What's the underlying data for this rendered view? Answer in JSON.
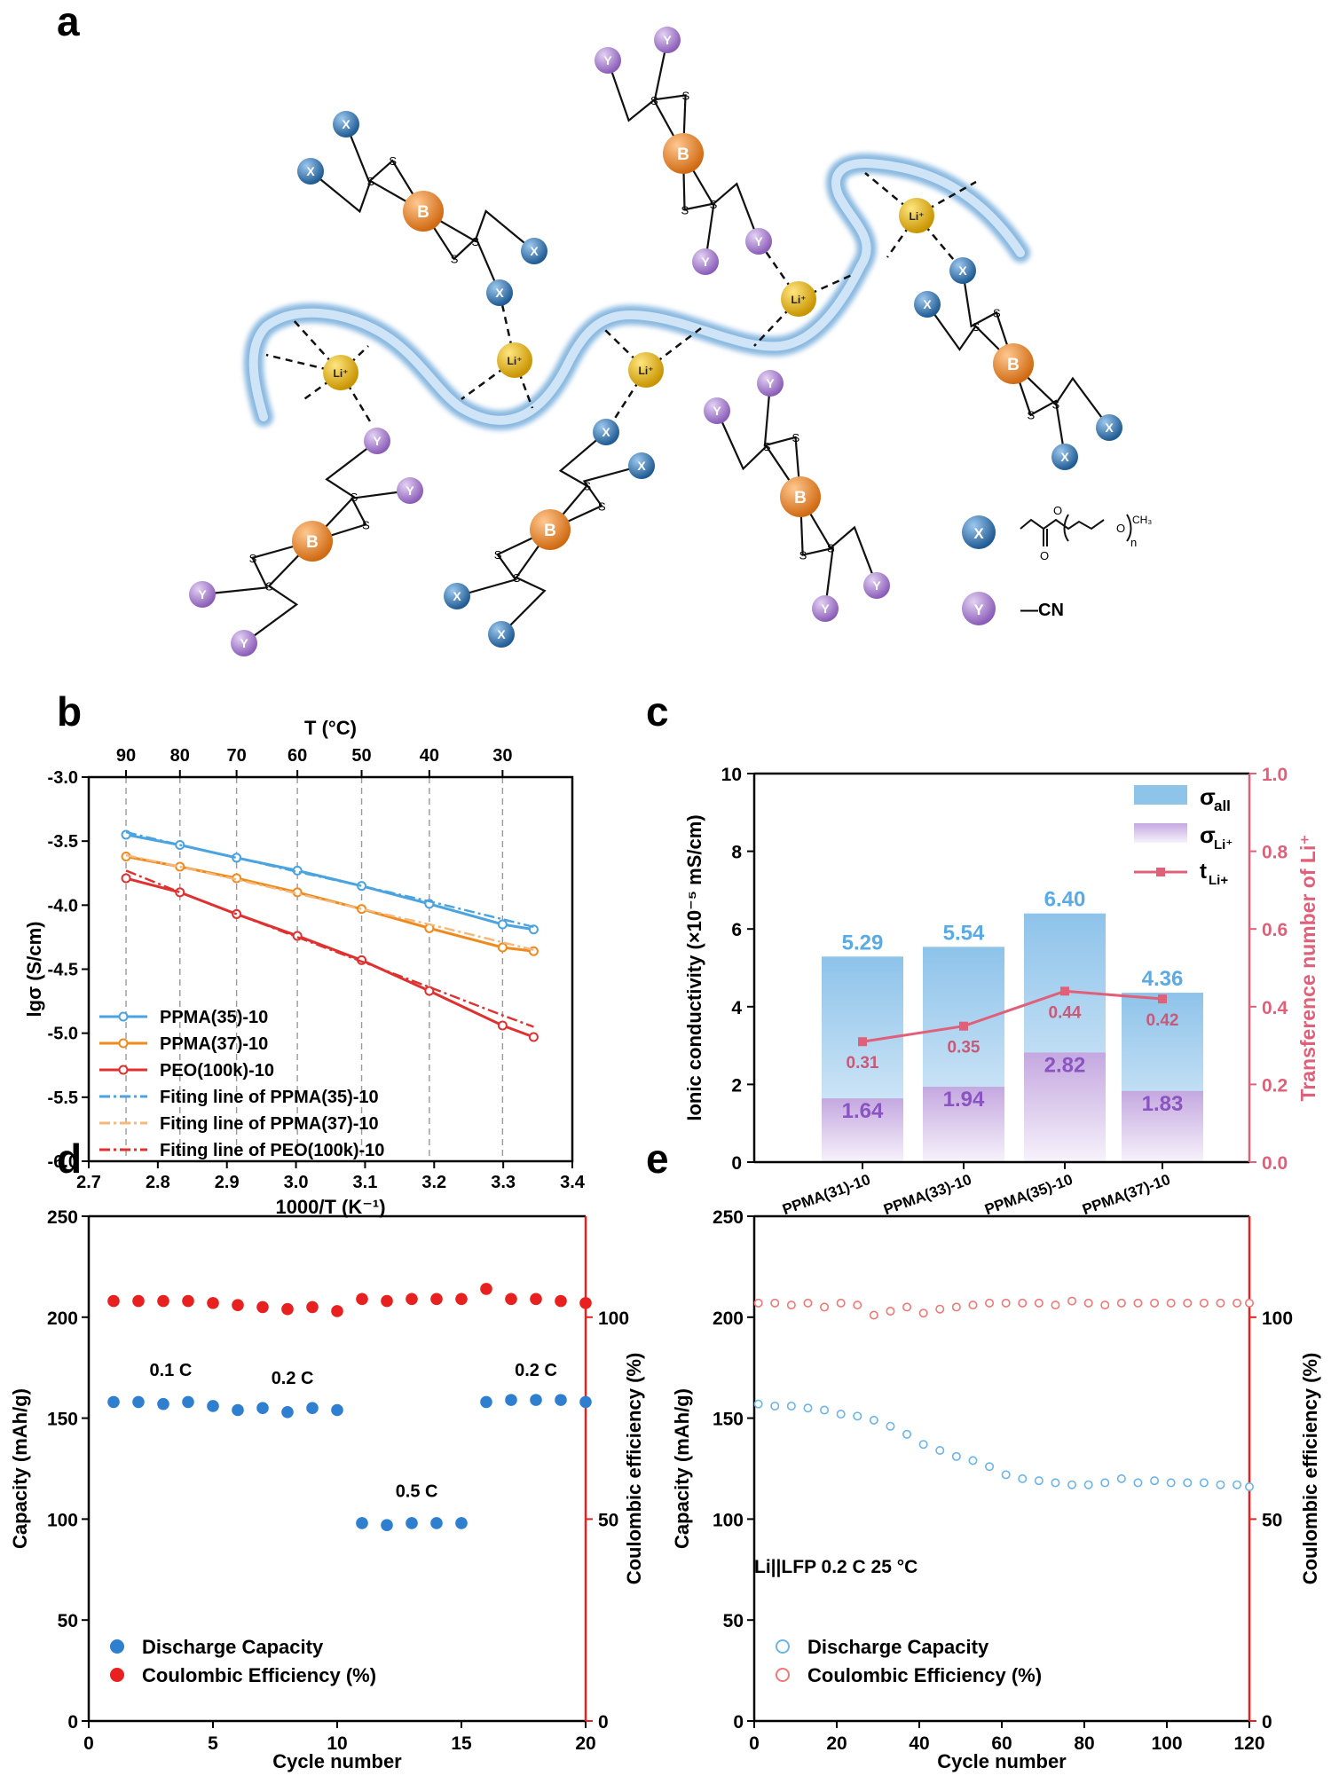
{
  "panels": {
    "a": {
      "letter": "a",
      "atom_labels": {
        "x": "X",
        "y": "Y",
        "b": "B",
        "li": "Li⁺",
        "s": "S"
      },
      "legend": {
        "x_subst": "-CH2-C(=O)-O-(CH2-CH2-O)n-CH3",
        "x_n": "n",
        "x_ch3": "CH₃",
        "x_o1": "O",
        "x_o2": "O",
        "y_subst": "—CN"
      },
      "colors": {
        "x": "#2e6fa8",
        "y": "#9b6fc4",
        "b": "#e0822a",
        "li": "#e4b400",
        "chain": "#8ab9e0"
      }
    },
    "b": {
      "letter": "b",
      "top_axis_title": "T (°C)"
    },
    "c": {
      "letter": "c"
    },
    "d": {
      "letter": "d"
    },
    "e": {
      "letter": "e",
      "annotation": "Li||LFP 0.2 C 25 °C"
    }
  },
  "chart_data": [
    {
      "id": "b",
      "type": "line",
      "xlabel": "1000/T (K⁻¹)",
      "ylabel": "lgσ (S/cm)",
      "xlim": [
        2.7,
        3.4
      ],
      "ylim": [
        -6.0,
        -3.0
      ],
      "xticks": [
        "2.7",
        "2.8",
        "2.9",
        "3.0",
        "3.1",
        "3.2",
        "3.3",
        "3.4"
      ],
      "yticks": [
        "-3.0",
        "-3.5",
        "-4.0",
        "-4.5",
        "-5.0",
        "-5.5",
        "-6.0"
      ],
      "top_axis": {
        "title": "T (°C)",
        "ticks": [
          {
            "x": 2.754,
            "label": "90"
          },
          {
            "x": 2.832,
            "label": "80"
          },
          {
            "x": 2.914,
            "label": "70"
          },
          {
            "x": 3.002,
            "label": "60"
          },
          {
            "x": 3.095,
            "label": "50"
          },
          {
            "x": 3.193,
            "label": "40"
          },
          {
            "x": 3.299,
            "label": "30"
          }
        ]
      },
      "grid": "vertical dashed at top-axis temperatures",
      "legend_position": "bottom-left",
      "x": [
        2.754,
        2.832,
        2.914,
        3.002,
        3.095,
        3.193,
        3.299,
        3.344
      ],
      "series": [
        {
          "name": "PPMA(35)-10",
          "color": "#4ba3e0",
          "style": "solid-marker",
          "values": [
            -3.45,
            -3.53,
            -3.63,
            -3.73,
            -3.85,
            -3.99,
            -4.15,
            -4.19
          ]
        },
        {
          "name": "PPMA(37)-10",
          "color": "#f08a1c",
          "style": "solid-marker",
          "values": [
            -3.62,
            -3.7,
            -3.79,
            -3.9,
            -4.03,
            -4.18,
            -4.33,
            -4.36
          ]
        },
        {
          "name": "PEO(100k)-10",
          "color": "#e03030",
          "style": "solid-marker",
          "values": [
            -3.79,
            -3.9,
            -4.07,
            -4.24,
            -4.43,
            -4.67,
            -4.94,
            -5.03
          ]
        },
        {
          "name": "Fiting line of PPMA(35)-10",
          "color": "#4ba3e0",
          "style": "dashdot",
          "values": [
            -3.43,
            -3.53,
            -3.63,
            -3.74,
            -3.85,
            -3.97,
            -4.11,
            -4.17
          ]
        },
        {
          "name": "Fiting line of PPMA(37)-10",
          "color": "#f5b87a",
          "style": "dashdot",
          "values": [
            -3.61,
            -3.7,
            -3.8,
            -3.91,
            -4.03,
            -4.15,
            -4.29,
            -4.35
          ]
        },
        {
          "name": "Fiting line of PEO(100k)-10",
          "color": "#e03030",
          "style": "dashdot",
          "values": [
            -3.73,
            -3.9,
            -4.07,
            -4.25,
            -4.44,
            -4.64,
            -4.86,
            -4.95
          ]
        }
      ]
    },
    {
      "id": "c",
      "type": "bar",
      "categories": [
        "PPMA(31)-10",
        "PPMA(33)-10",
        "PPMA(35)-10",
        "PPMA(37)-10"
      ],
      "ylabel": "Ionic conductivity  (×10⁻⁵ mS/cm)",
      "y2label": "Transference number of Li⁺",
      "ylim": [
        0,
        10
      ],
      "y2lim": [
        0.0,
        1.0
      ],
      "yticks": [
        "0",
        "2",
        "4",
        "6",
        "8",
        "10"
      ],
      "y2ticks": [
        "0.0",
        "0.2",
        "0.4",
        "0.6",
        "0.8",
        "1.0"
      ],
      "legend_position": "top-right",
      "series": [
        {
          "name": "σall",
          "legend_main": "σ",
          "legend_sub": "all",
          "color": "#8ec3ea",
          "values": [
            5.29,
            5.54,
            6.4,
            4.36
          ],
          "labels": [
            "5.29",
            "5.54",
            "6.40",
            "4.36"
          ]
        },
        {
          "name": "σLi⁺",
          "legend_main": "σ",
          "legend_sub": "Li⁺",
          "color": "#b99ad8",
          "values": [
            1.64,
            1.94,
            2.82,
            1.83
          ],
          "labels": [
            "1.64",
            "1.94",
            "2.82",
            "1.83"
          ]
        },
        {
          "name": "tLi+",
          "legend_main": "t",
          "legend_sub": "Li+",
          "color": "#e0607a",
          "axis": "right",
          "values": [
            0.31,
            0.35,
            0.44,
            0.42
          ],
          "labels": [
            "0.31",
            "0.35",
            "0.44",
            "0.42"
          ]
        }
      ]
    },
    {
      "id": "d",
      "type": "scatter",
      "xlabel": "Cycle number",
      "ylabel": "Capacity (mAh/g)",
      "y2label": "Coulombic efficiency (%)",
      "xlim": [
        0,
        20
      ],
      "ylim": [
        0,
        250
      ],
      "y2lim": [
        0,
        125
      ],
      "xticks": [
        "0",
        "5",
        "10",
        "15",
        "20"
      ],
      "yticks": [
        "0",
        "50",
        "100",
        "150",
        "200",
        "250"
      ],
      "y2ticks": [
        "0",
        "50",
        "100"
      ],
      "legend_position": "bottom-left",
      "annotations": [
        {
          "text": "0.1 C",
          "x": 3.3,
          "y": 171
        },
        {
          "text": "0.2 C",
          "x": 8.2,
          "y": 167
        },
        {
          "text": "0.5 C",
          "x": 13.2,
          "y": 111
        },
        {
          "text": "0.2 C",
          "x": 18.0,
          "y": 171
        }
      ],
      "x": [
        1,
        2,
        3,
        4,
        5,
        6,
        7,
        8,
        9,
        10,
        11,
        12,
        13,
        14,
        15,
        16,
        17,
        18,
        19,
        20
      ],
      "series": [
        {
          "name": "Discharge Capacity",
          "color": "#2f7fd0",
          "axis": "left",
          "values": [
            158,
            158,
            157,
            158,
            156,
            154,
            155,
            153,
            155,
            154,
            98,
            97,
            98,
            98,
            98,
            158,
            159,
            159,
            159,
            158
          ]
        },
        {
          "name": "Coulombic Efficiency (%)",
          "color": "#e82020",
          "axis": "right",
          "values": [
            104,
            104,
            104,
            104,
            103.5,
            103,
            102.5,
            102,
            102.5,
            101.5,
            104.5,
            104,
            104.5,
            104.5,
            104.5,
            107,
            104.5,
            104.5,
            104,
            103.5
          ]
        }
      ]
    },
    {
      "id": "e",
      "type": "scatter",
      "xlabel": "Cycle number",
      "ylabel": "Capacity (mAh/g)",
      "y2label": "Coulombic efficiency (%)",
      "xlim": [
        0,
        120
      ],
      "ylim": [
        0,
        250
      ],
      "y2lim": [
        0,
        125
      ],
      "xticks": [
        "0",
        "20",
        "40",
        "60",
        "80",
        "100",
        "120"
      ],
      "yticks": [
        "0",
        "50",
        "100",
        "150",
        "200",
        "250"
      ],
      "y2ticks": [
        "0",
        "50",
        "100"
      ],
      "legend_position": "bottom-left",
      "x": [
        1,
        5,
        9,
        13,
        17,
        21,
        25,
        29,
        33,
        37,
        41,
        45,
        49,
        53,
        57,
        61,
        65,
        69,
        73,
        77,
        81,
        85,
        89,
        93,
        97,
        101,
        105,
        109,
        113,
        117,
        120
      ],
      "series": [
        {
          "name": "Discharge Capacity",
          "color": "#6cb4ea",
          "axis": "left",
          "values": [
            157,
            156,
            156,
            155,
            154,
            152,
            151,
            149,
            146,
            142,
            137,
            134,
            131,
            129,
            126,
            122,
            120,
            119,
            118,
            117,
            117,
            118,
            120,
            118,
            119,
            118,
            118,
            118,
            117,
            117,
            116
          ]
        },
        {
          "name": "Coulombic Efficiency (%)",
          "color": "#f07878",
          "axis": "right",
          "values": [
            103.5,
            103.5,
            103,
            103.5,
            102.5,
            103.5,
            103,
            100.5,
            101.5,
            102.5,
            101,
            102,
            102.5,
            103,
            103.5,
            103.5,
            103.5,
            103.5,
            103,
            104,
            103.5,
            103,
            103.5,
            103.5,
            103.5,
            103.5,
            103.5,
            103.5,
            103.5,
            103.5,
            103.5
          ]
        }
      ]
    }
  ]
}
